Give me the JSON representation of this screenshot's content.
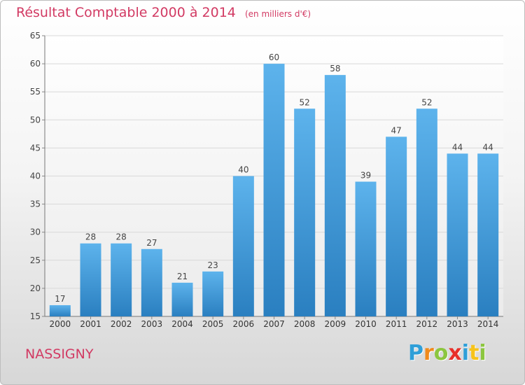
{
  "chart_data": {
    "type": "bar",
    "title": "Résultat Comptable 2000 à 2014",
    "subtitle": "(en milliers d'€)",
    "categories": [
      "2000",
      "2001",
      "2002",
      "2003",
      "2004",
      "2005",
      "2006",
      "2007",
      "2008",
      "2009",
      "2010",
      "2011",
      "2012",
      "2013",
      "2014"
    ],
    "values": [
      17,
      28,
      28,
      27,
      21,
      23,
      40,
      60,
      52,
      58,
      39,
      47,
      52,
      44,
      44
    ],
    "ylim": [
      15,
      65
    ],
    "yticks": [
      15,
      20,
      25,
      30,
      35,
      40,
      45,
      50,
      55,
      60,
      65
    ],
    "grid": true,
    "data_labels": true,
    "bar_color": "#3f9ee0"
  },
  "footer": {
    "place": "NASSIGNY",
    "logo_letters": [
      {
        "ch": "P",
        "color": "#2f9fd8"
      },
      {
        "ch": "r",
        "color": "#f08a1c"
      },
      {
        "ch": "o",
        "color": "#8cc63f"
      },
      {
        "ch": "x",
        "color": "#e8302a"
      },
      {
        "ch": "i",
        "color": "#2f9fd8"
      },
      {
        "ch": "t",
        "color": "#f7c31a"
      },
      {
        "ch": "i",
        "color": "#8cc63f"
      }
    ]
  }
}
